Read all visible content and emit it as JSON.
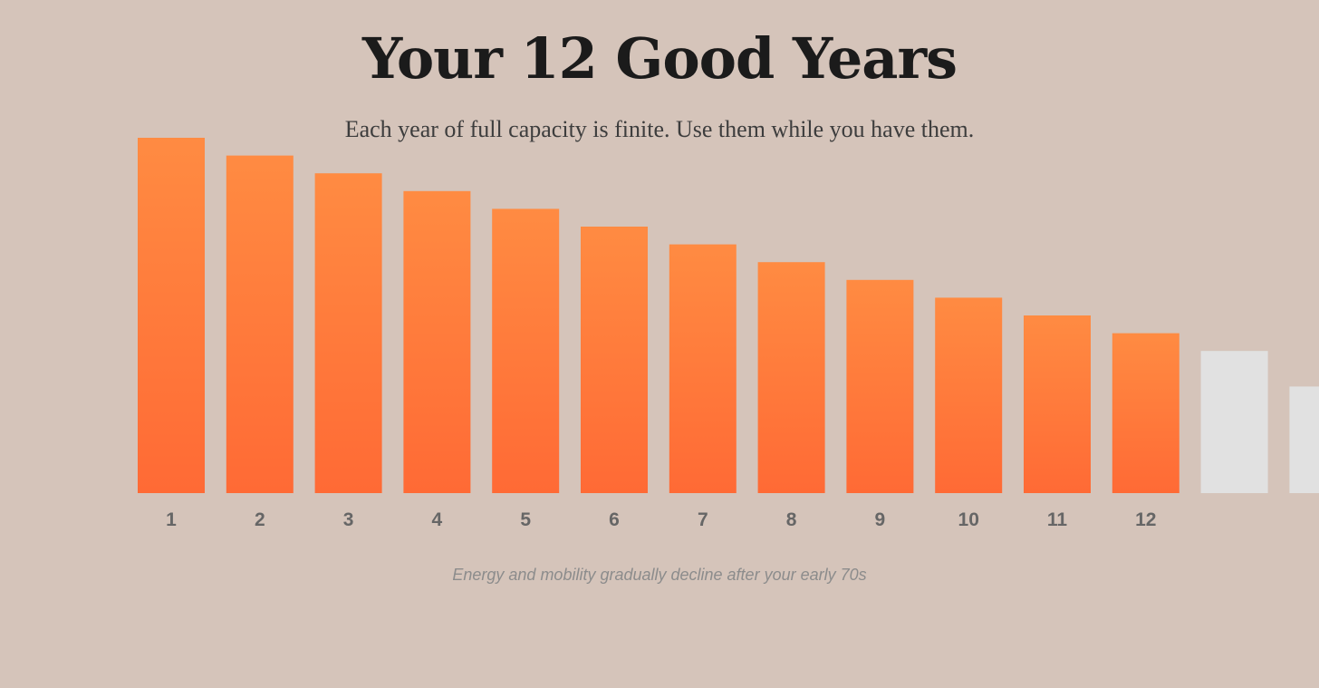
{
  "colors": {
    "background": "#d5c4ba",
    "bar_top": "#ff8b42",
    "bar_bottom": "#ff6a35",
    "bar_future": "#e1e1e1",
    "tick": "#666666"
  },
  "chart_data": {
    "type": "bar",
    "title": "Your 12 Good Years",
    "subtitle": "Each year of full capacity is finite. Use them while you have them.",
    "caption": "Energy and mobility gradually decline after your early 70s",
    "xlabel": "",
    "ylabel": "",
    "grid": false,
    "legend": "none",
    "ylim": [
      0,
      100
    ],
    "categories": [
      "1",
      "2",
      "3",
      "4",
      "5",
      "6",
      "7",
      "8",
      "9",
      "10",
      "11",
      "12",
      "",
      ""
    ],
    "values": [
      100,
      95,
      90,
      85,
      80,
      75,
      70,
      65,
      60,
      55,
      50,
      45,
      40,
      30
    ],
    "highlighted": [
      true,
      true,
      true,
      true,
      true,
      true,
      true,
      true,
      true,
      true,
      true,
      true,
      false,
      false
    ]
  }
}
